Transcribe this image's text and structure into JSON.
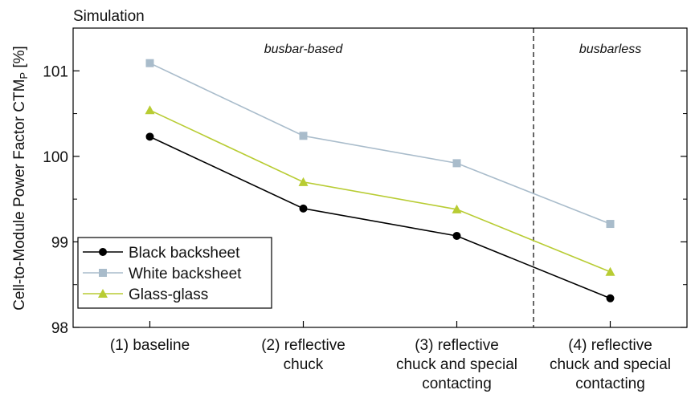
{
  "chart_data": {
    "type": "line",
    "title": "Simulation",
    "ylabel_main": "Cell-to-Module Power Factor CTM",
    "ylabel_sub": "P",
    "ylabel_unit": " [%]",
    "xlabel": "",
    "ylim": [
      98,
      101.5
    ],
    "yticks": [
      98,
      99,
      100,
      101
    ],
    "categories": [
      [
        "(1) baseline"
      ],
      [
        "(2) reflective",
        "chuck"
      ],
      [
        "(3) reflective",
        "chuck and special",
        "contacting"
      ],
      [
        "(4) reflective",
        "chuck and special",
        "contacting"
      ]
    ],
    "separator_after_category": 2,
    "regions": [
      {
        "label": "busbar-based"
      },
      {
        "label": "busbarless"
      }
    ],
    "legend_position": "bottom-left",
    "series": [
      {
        "name": "Black backsheet",
        "marker": "circle",
        "color": "#000000",
        "values": [
          100.23,
          99.39,
          99.07,
          98.34
        ]
      },
      {
        "name": "White backsheet",
        "marker": "square",
        "color": "#a9bccb",
        "values": [
          101.09,
          100.24,
          99.92,
          99.21
        ]
      },
      {
        "name": "Glass-glass",
        "marker": "triangle",
        "color": "#b8cc33",
        "values": [
          100.54,
          99.7,
          99.38,
          98.65
        ]
      }
    ]
  }
}
